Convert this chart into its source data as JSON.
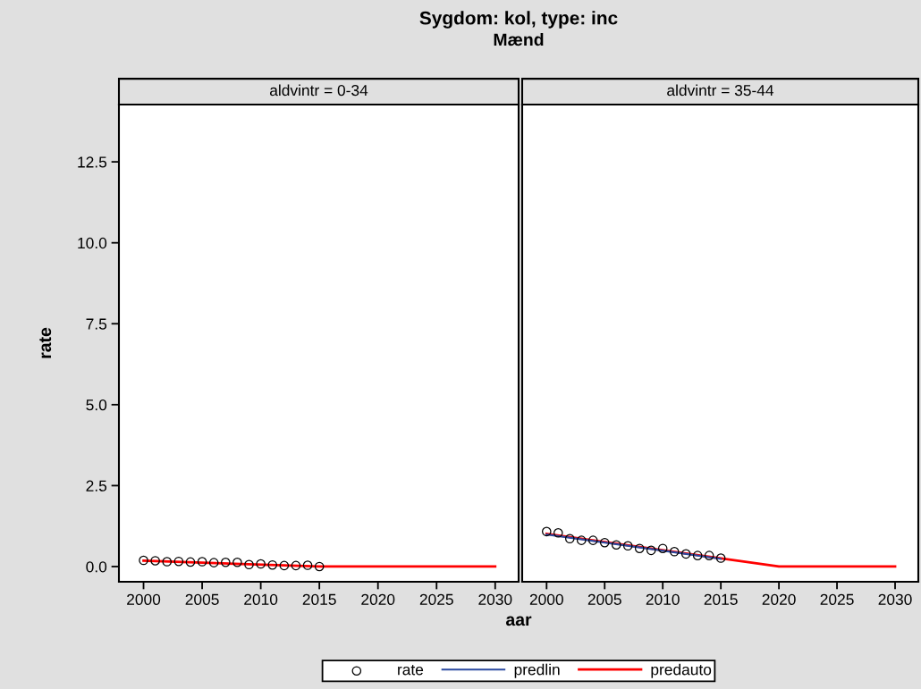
{
  "chart_data": [
    {
      "type": "line",
      "title": "Sygdom: kol, type: inc",
      "subtitle": "Mænd",
      "annotations": [
        "aldvintr = 0-34"
      ],
      "xlabel": "aar",
      "ylabel": "rate",
      "xlim": [
        1997.9,
        2032
      ],
      "xticks": [
        2000,
        2005,
        2010,
        2015,
        2020,
        2025,
        2030
      ],
      "ylim": [
        -0.47,
        14.27
      ],
      "yticks": [
        {
          "value": 0,
          "label": "0.0"
        },
        {
          "value": 2.5,
          "label": "2.5"
        },
        {
          "value": 5,
          "label": "5.0"
        },
        {
          "value": 7.5,
          "label": "7.5"
        },
        {
          "value": 10,
          "label": "10.0"
        },
        {
          "value": 12.5,
          "label": "12.5"
        }
      ],
      "grid": false,
      "series": [
        {
          "type": "scatter",
          "marker": "circle",
          "color": "#000000",
          "x": [
            2000,
            2001,
            2002,
            2003,
            2004,
            2005,
            2006,
            2007,
            2008,
            2009,
            2010,
            2011,
            2012,
            2013,
            2014,
            2015
          ],
          "values": [
            0.19,
            0.18,
            0.15,
            0.16,
            0.14,
            0.15,
            0.12,
            0.13,
            0.13,
            0.06,
            0.08,
            0.05,
            0.03,
            0.03,
            0.04,
            0.0
          ]
        },
        {
          "color": "#ff0000",
          "x": [
            2000,
            2015,
            2030
          ],
          "values": [
            0.18,
            0.0,
            0.0
          ]
        }
      ]
    },
    {
      "type": "line",
      "annotations": [
        "aldvintr = 35-44"
      ],
      "xlim": [
        1997.9,
        2032
      ],
      "xticks": [
        2000,
        2005,
        2010,
        2015,
        2020,
        2025,
        2030
      ],
      "ylim": [
        -0.47,
        14.27
      ],
      "tick_labels": "x",
      "grid": false,
      "legend": "bottom",
      "series": [
        {
          "name": "rate",
          "type": "scatter",
          "marker": "circle",
          "color": "#000000",
          "x": [
            2000,
            2001,
            2002,
            2003,
            2004,
            2005,
            2006,
            2007,
            2008,
            2009,
            2010,
            2011,
            2012,
            2013,
            2014,
            2015
          ],
          "values": [
            1.08,
            1.04,
            0.86,
            0.81,
            0.81,
            0.74,
            0.67,
            0.64,
            0.56,
            0.5,
            0.56,
            0.46,
            0.39,
            0.34,
            0.34,
            0.26
          ]
        },
        {
          "name": "predlin",
          "color": "#2b4aa0",
          "x": [
            2000,
            2015
          ],
          "values": [
            0.99,
            0.24
          ]
        },
        {
          "name": "predauto",
          "color": "#ff0000",
          "x": [
            2000,
            2020,
            2030
          ],
          "values": [
            1.01,
            0.0,
            0.0
          ]
        }
      ]
    }
  ]
}
